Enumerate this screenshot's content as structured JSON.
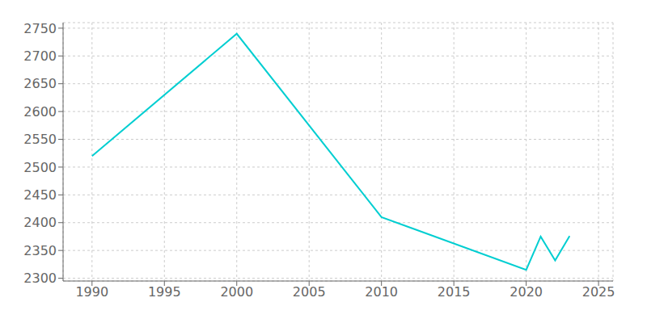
{
  "chart_data": {
    "type": "line",
    "x": [
      1990,
      2000,
      2010,
      2020,
      2021,
      2022,
      2023
    ],
    "values": [
      2520,
      2740,
      2410,
      2315,
      2375,
      2332,
      2376
    ],
    "color": "#00CED1",
    "xlim": [
      1988,
      2026
    ],
    "ylim": [
      2295,
      2760
    ],
    "xticks": [
      1990,
      1995,
      2000,
      2005,
      2010,
      2015,
      2020,
      2025
    ],
    "yticks": [
      2300,
      2350,
      2400,
      2450,
      2500,
      2550,
      2600,
      2650,
      2700,
      2750
    ],
    "grid": true
  }
}
